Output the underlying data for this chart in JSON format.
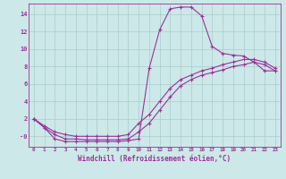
{
  "xlabel": "Windchill (Refroidissement éolien,°C)",
  "bg_color": "#cce8e8",
  "grid_color": "#aacccc",
  "line_color": "#993399",
  "xlim": [
    -0.5,
    23.5
  ],
  "ylim": [
    -1.2,
    15.2
  ],
  "xticks": [
    0,
    1,
    2,
    3,
    4,
    5,
    6,
    7,
    8,
    9,
    10,
    11,
    12,
    13,
    14,
    15,
    16,
    17,
    18,
    19,
    20,
    21,
    22,
    23
  ],
  "ytick_vals": [
    0,
    2,
    4,
    6,
    8,
    10,
    12,
    14
  ],
  "ytick_labels": [
    "-0",
    "2",
    "4",
    "6",
    "8",
    "10",
    "12",
    "14"
  ],
  "curve1_x": [
    0,
    1,
    2,
    3,
    4,
    5,
    6,
    7,
    8,
    9,
    10,
    11,
    12,
    13,
    14,
    15,
    16,
    17,
    18,
    19,
    20,
    21,
    22,
    23
  ],
  "curve1_y": [
    2.0,
    1.0,
    -0.3,
    -0.6,
    -0.6,
    -0.6,
    -0.6,
    -0.6,
    -0.6,
    -0.5,
    -0.3,
    7.8,
    12.2,
    14.6,
    14.8,
    14.8,
    13.8,
    10.3,
    9.5,
    9.3,
    9.2,
    8.5,
    7.5,
    7.5
  ],
  "curve2_x": [
    0,
    1,
    2,
    3,
    4,
    5,
    6,
    7,
    8,
    9,
    10,
    11,
    12,
    13,
    14,
    15,
    16,
    17,
    18,
    19,
    20,
    21,
    22,
    23
  ],
  "curve2_y": [
    2.0,
    1.2,
    0.5,
    0.2,
    0.0,
    0.0,
    0.0,
    0.0,
    0.0,
    0.2,
    1.5,
    2.5,
    4.0,
    5.5,
    6.5,
    7.0,
    7.5,
    7.8,
    8.2,
    8.5,
    8.8,
    8.8,
    8.5,
    7.8
  ],
  "curve3_x": [
    0,
    1,
    2,
    3,
    4,
    5,
    6,
    7,
    8,
    9,
    10,
    11,
    12,
    13,
    14,
    15,
    16,
    17,
    18,
    19,
    20,
    21,
    22,
    23
  ],
  "curve3_y": [
    2.0,
    1.0,
    0.2,
    -0.3,
    -0.3,
    -0.4,
    -0.4,
    -0.4,
    -0.4,
    -0.3,
    0.5,
    1.5,
    3.0,
    4.5,
    5.8,
    6.5,
    7.0,
    7.3,
    7.6,
    8.0,
    8.2,
    8.5,
    8.2,
    7.5
  ]
}
